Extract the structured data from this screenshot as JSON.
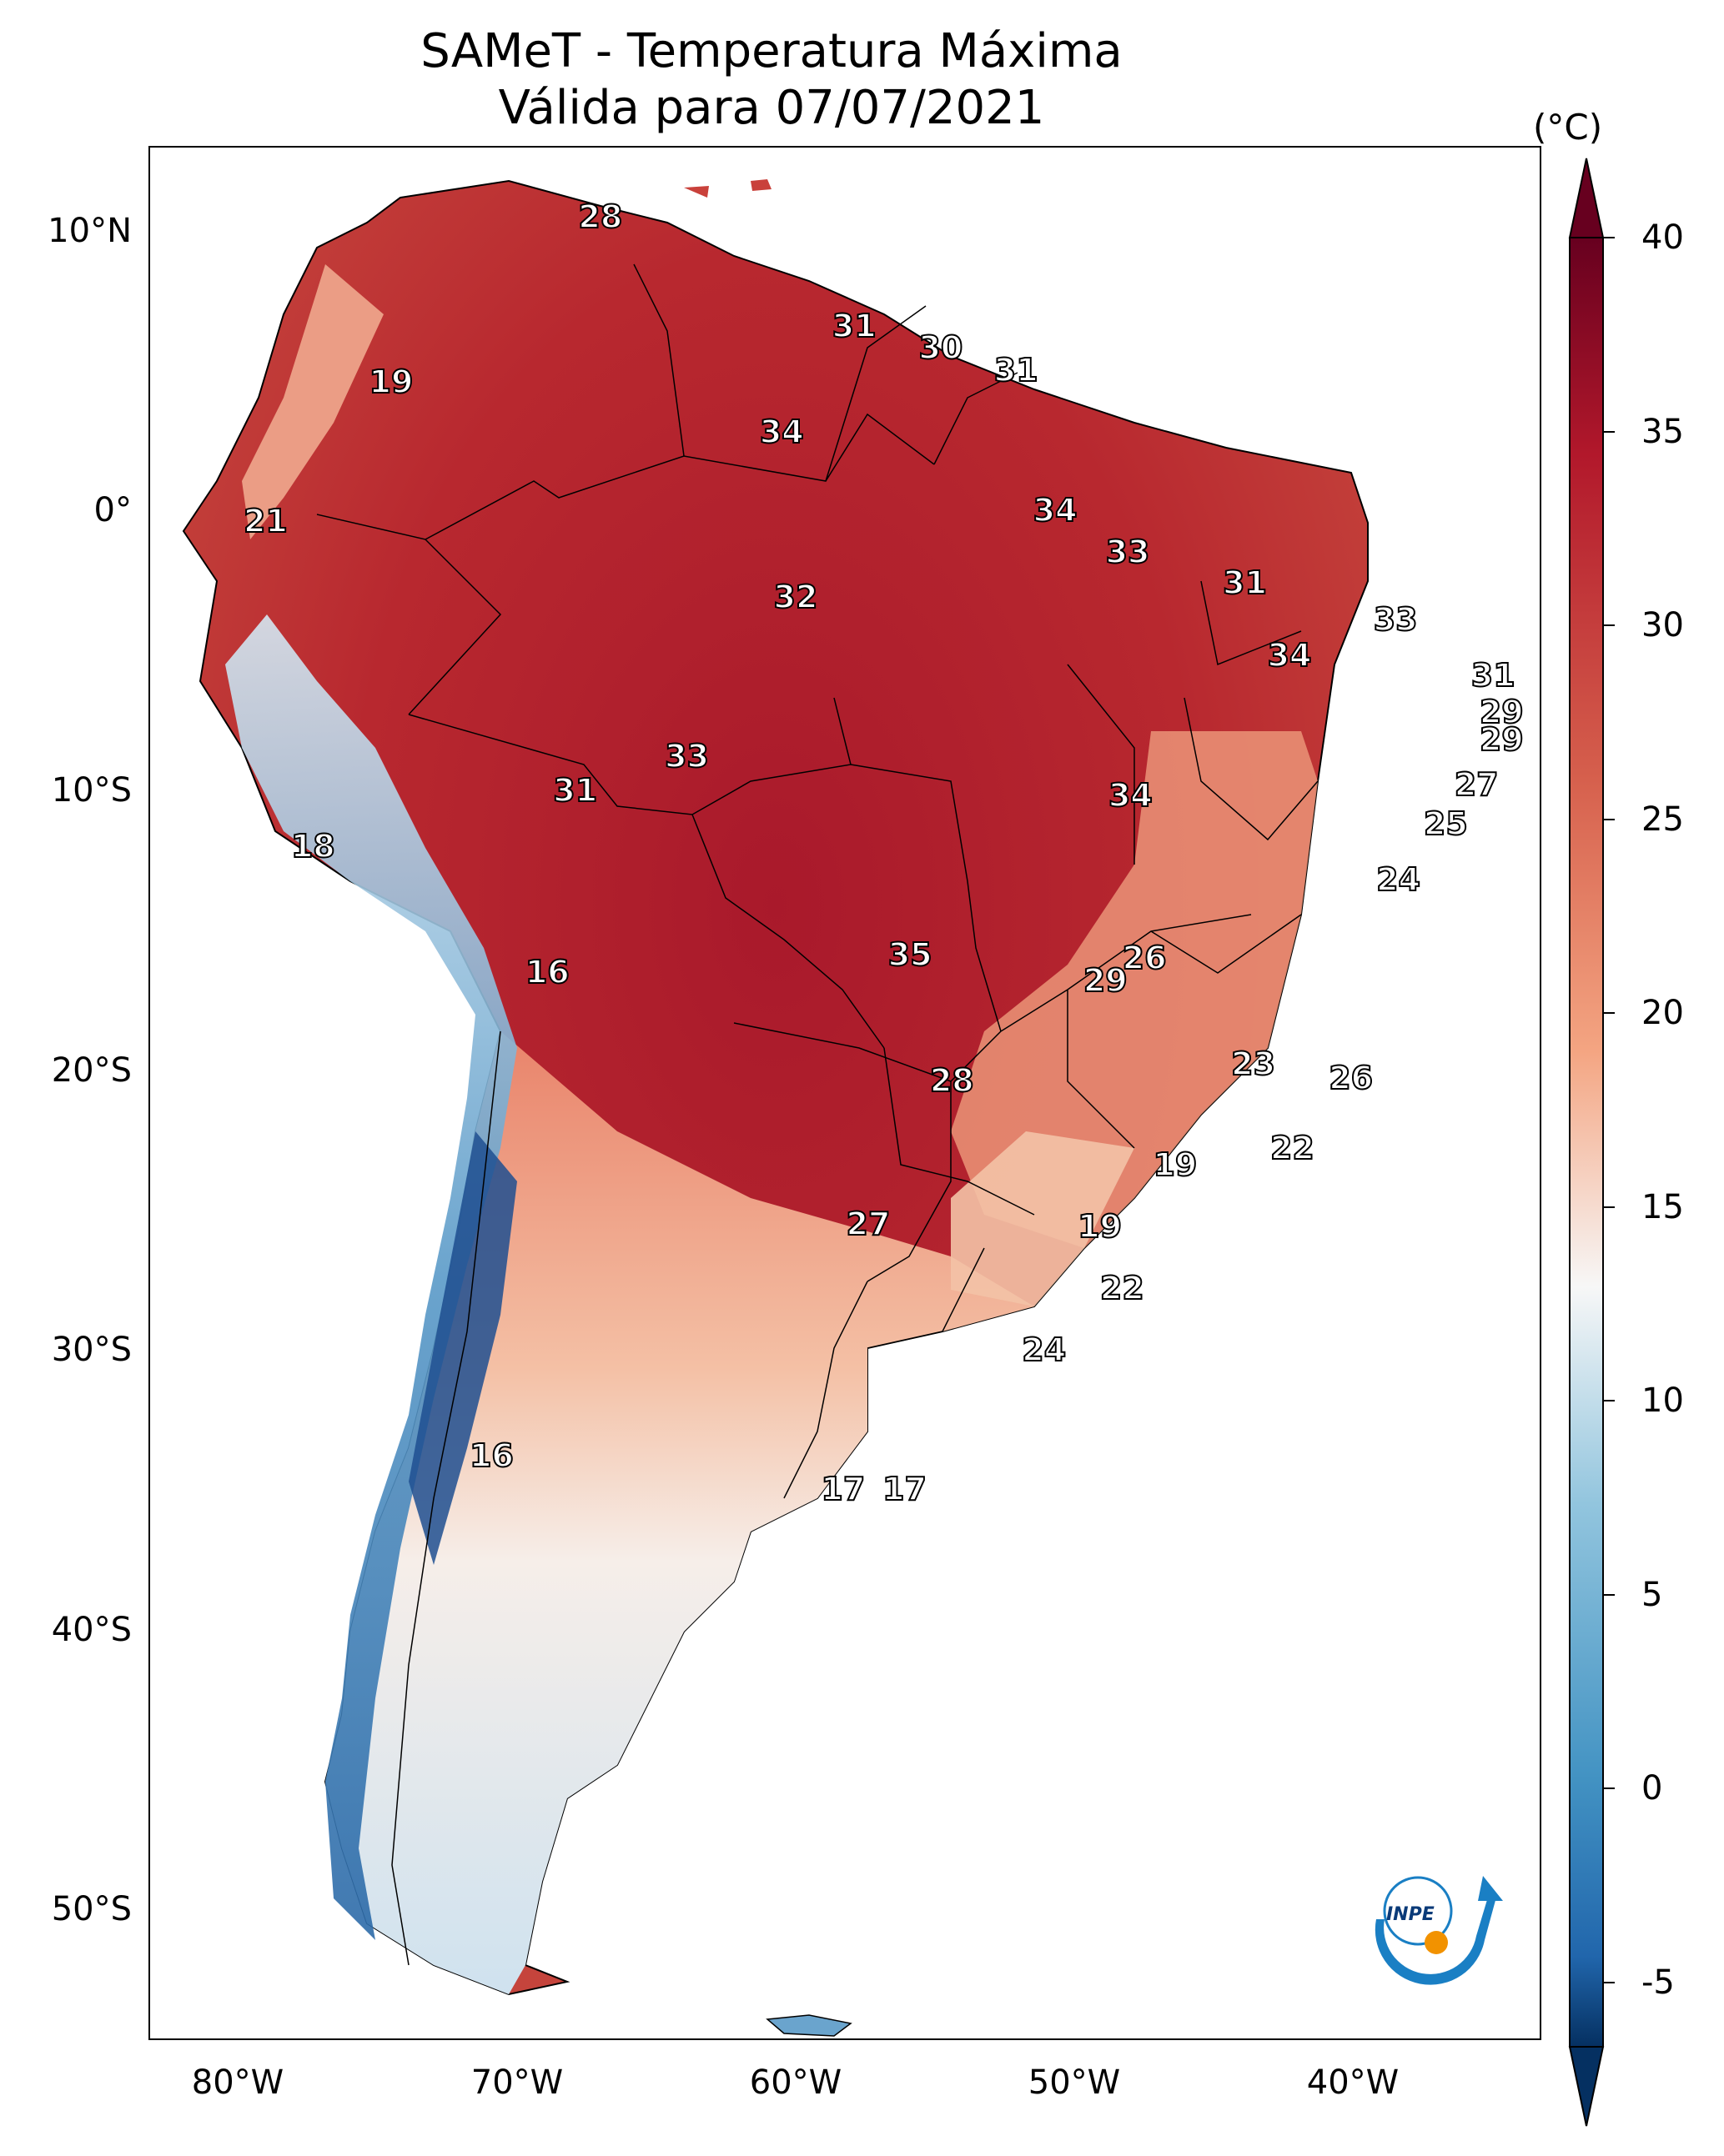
{
  "title": {
    "line1": "SAMeT - Temperatura Máxima",
    "line2": "Válida para 07/07/2021"
  },
  "map": {
    "lat_ticks": [
      "10°N",
      "0°",
      "10°S",
      "20°S",
      "30°S",
      "40°S",
      "50°S"
    ],
    "lon_ticks": [
      "80°W",
      "70°W",
      "60°W",
      "50°W",
      "40°W"
    ],
    "labels": [
      {
        "text": "28",
        "lon": -67,
        "lat": 10.5
      },
      {
        "text": "31",
        "lon": -57.9,
        "lat": 6.6
      },
      {
        "text": "30",
        "lon": -54.8,
        "lat": 5.8
      },
      {
        "text": "31",
        "lon": -52.1,
        "lat": 5.0
      },
      {
        "text": "19",
        "lon": -74.5,
        "lat": 4.6
      },
      {
        "text": "34",
        "lon": -60.5,
        "lat": 2.8
      },
      {
        "text": "21",
        "lon": -79.0,
        "lat": -0.4
      },
      {
        "text": "34",
        "lon": -50.7,
        "lat": 0.0
      },
      {
        "text": "33",
        "lon": -48.1,
        "lat": -1.5
      },
      {
        "text": "31",
        "lon": -43.9,
        "lat": -2.6
      },
      {
        "text": "32",
        "lon": -60.0,
        "lat": -3.1
      },
      {
        "text": "33",
        "lon": -38.5,
        "lat": -3.9
      },
      {
        "text": "34",
        "lon": -42.3,
        "lat": -5.2
      },
      {
        "text": "31",
        "lon": -35.0,
        "lat": -5.9
      },
      {
        "text": "29",
        "lon": -34.7,
        "lat": -7.2
      },
      {
        "text": "29",
        "lon": -34.7,
        "lat": -8.2
      },
      {
        "text": "33",
        "lon": -63.9,
        "lat": -8.8
      },
      {
        "text": "27",
        "lon": -35.6,
        "lat": -9.8
      },
      {
        "text": "31",
        "lon": -67.9,
        "lat": -10.0
      },
      {
        "text": "34",
        "lon": -48.0,
        "lat": -10.2
      },
      {
        "text": "25",
        "lon": -36.7,
        "lat": -11.2
      },
      {
        "text": "18",
        "lon": -77.3,
        "lat": -12.0
      },
      {
        "text": "24",
        "lon": -38.4,
        "lat": -13.2
      },
      {
        "text": "35",
        "lon": -55.9,
        "lat": -15.9
      },
      {
        "text": "26",
        "lon": -47.5,
        "lat": -16.0
      },
      {
        "text": "16",
        "lon": -68.9,
        "lat": -16.5
      },
      {
        "text": "29",
        "lon": -48.9,
        "lat": -16.8
      },
      {
        "text": "23",
        "lon": -43.6,
        "lat": -19.8
      },
      {
        "text": "26",
        "lon": -40.1,
        "lat": -20.3
      },
      {
        "text": "28",
        "lon": -54.4,
        "lat": -20.4
      },
      {
        "text": "22",
        "lon": -42.2,
        "lat": -22.8
      },
      {
        "text": "19",
        "lon": -46.4,
        "lat": -23.4
      },
      {
        "text": "27",
        "lon": -57.4,
        "lat": -25.5
      },
      {
        "text": "19",
        "lon": -49.1,
        "lat": -25.6
      },
      {
        "text": "22",
        "lon": -48.3,
        "lat": -27.8
      },
      {
        "text": "24",
        "lon": -51.1,
        "lat": -30.0
      },
      {
        "text": "16",
        "lon": -70.9,
        "lat": -33.8
      },
      {
        "text": "17",
        "lon": -58.3,
        "lat": -35.0
      },
      {
        "text": "17",
        "lon": -56.1,
        "lat": -35.0
      }
    ]
  },
  "colorbar": {
    "unit": "(°C)",
    "min": -5,
    "max": 40,
    "ticks": [
      "40",
      "35",
      "30",
      "25",
      "20",
      "15",
      "10",
      "5",
      "0",
      "-5"
    ],
    "extend": "both"
  },
  "logo": {
    "text": "INPE"
  },
  "colors": {
    "cold": "#0a3a78",
    "neutral": "#f6f6f6",
    "hot": "#67001f",
    "border": "#000000"
  }
}
